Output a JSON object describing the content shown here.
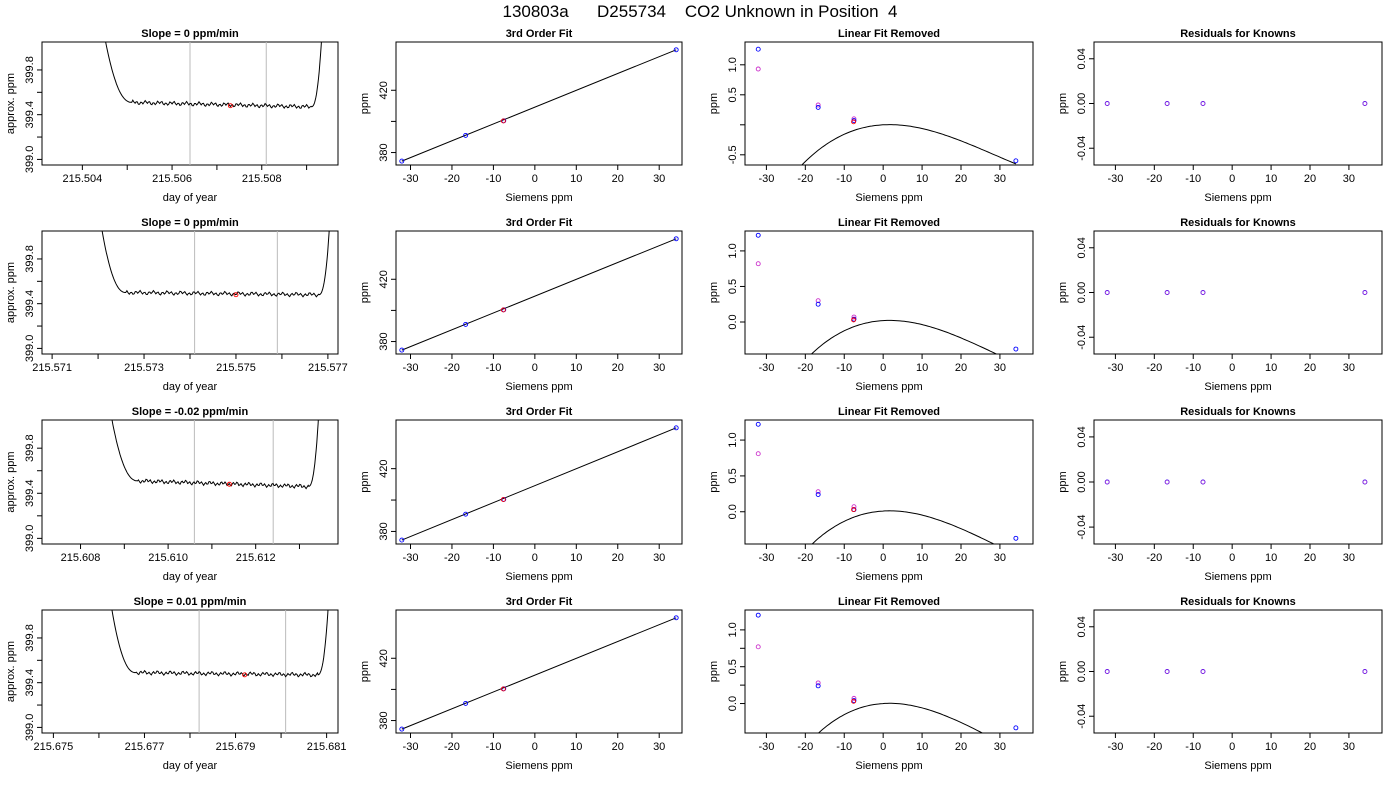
{
  "page": {
    "title": "130803a      D255734    CO2 Unknown in Position  4"
  },
  "colors": {
    "axis": "#000000",
    "line": "#000000",
    "known": "#0000ff",
    "unknown": "#ff0000",
    "alt": "#cc33cc",
    "vline": "#bbbbbb"
  },
  "chart_data": [
    {
      "row": 1,
      "panel": "timeseries",
      "type": "line",
      "title": "Slope =  0  ppm/min",
      "xlabel": "day of year",
      "ylabel": "approx. ppm",
      "xlim": [
        215.5031,
        215.5097
      ],
      "ylim": [
        398.95,
        400.05
      ],
      "xticks": [
        215.504,
        215.505,
        215.506,
        215.507,
        215.508,
        215.509
      ],
      "xticklabels": [
        "215.504",
        "",
        "215.506",
        "",
        "215.508",
        ""
      ],
      "yticks": [
        399.0,
        399.2,
        399.4,
        399.6,
        399.8
      ],
      "yticklabels": [
        "399.0",
        "",
        "399.4",
        "",
        "399.8"
      ],
      "vlines": [
        215.5064,
        215.5081
      ],
      "marker": {
        "x": 215.5073,
        "y": 399.48
      },
      "trace": {
        "x_start": 215.5043,
        "x_rise_end": 215.5051,
        "x_fall_start": 215.5091,
        "x_end": 215.5094,
        "level_start": 399.51,
        "level_end": 399.47
      }
    },
    {
      "row": 1,
      "panel": "fit",
      "type": "scatter",
      "title": "3rd Order Fit",
      "xlabel": "Siemens ppm",
      "ylabel": "ppm",
      "xlim": [
        -33.5,
        35.5
      ],
      "ylim": [
        372,
        451
      ],
      "xticks": [
        -30,
        -20,
        -10,
        0,
        10,
        20,
        30
      ],
      "yticks": [
        380,
        400,
        420
      ],
      "yticklabels": [
        "380",
        "",
        "420"
      ],
      "line": {
        "x": [
          -32.1,
          34.1
        ],
        "y": [
          374.5,
          446.0
        ]
      },
      "knowns": {
        "x": [
          -32.1,
          -16.7,
          -7.5,
          34.1
        ],
        "y": [
          374.5,
          391.0,
          400.4,
          446.0
        ]
      },
      "unknown": {
        "x": [
          -7.6
        ],
        "y": [
          400.3
        ]
      }
    },
    {
      "row": 1,
      "panel": "linear_removed",
      "type": "line",
      "title": "Linear Fit Removed",
      "xlabel": "Siemens ppm",
      "ylabel": "ppm",
      "xlim": [
        -35.5,
        38.5
      ],
      "ylim": [
        -0.67,
        1.38
      ],
      "xticks": [
        -30,
        -20,
        -10,
        0,
        10,
        20,
        30
      ],
      "yticks": [
        -0.5,
        0.0,
        0.5,
        1.0
      ],
      "yticklabels": [
        "-0.5",
        "",
        "0.5",
        "1.0"
      ],
      "curve": {
        "xmin": -32.1,
        "xmax": 34.1,
        "coef": [
          0.0,
          0.0035,
          -0.0011,
          1.28e-05
        ]
      },
      "knowns": {
        "x": [
          -32.1,
          -16.7,
          -7.5,
          34.1
        ],
        "y": [
          1.26,
          0.29,
          0.07,
          -0.6
        ]
      },
      "alt": {
        "x": [
          -32.1,
          -16.7,
          -7.5
        ],
        "y": [
          0.93,
          0.33,
          0.1
        ]
      },
      "unknown": {
        "x": [
          -7.6
        ],
        "y": [
          0.05
        ]
      }
    },
    {
      "row": 1,
      "panel": "residuals",
      "type": "scatter",
      "title": "Residuals for Knowns",
      "xlabel": "Siemens ppm",
      "ylabel": "ppm",
      "xlim": [
        -35.5,
        38.5
      ],
      "ylim": [
        -0.055,
        0.055
      ],
      "xticks": [
        -30,
        -20,
        -10,
        0,
        10,
        20,
        30
      ],
      "yticks": [
        -0.04,
        0.0,
        0.04
      ],
      "yticklabels": [
        "-0.04",
        "0.00",
        "0.04"
      ],
      "knowns": {
        "x": [
          -32.1,
          -16.7,
          -7.5,
          34.1
        ],
        "y": [
          0,
          0,
          0,
          0
        ]
      }
    },
    {
      "row": 2,
      "panel": "timeseries",
      "type": "line",
      "title": "Slope =  0  ppm/min",
      "xlabel": "day of year",
      "ylabel": "approx. ppm",
      "xlim": [
        215.57078,
        215.57722
      ],
      "ylim": [
        398.95,
        400.05
      ],
      "xticks": [
        215.571,
        215.572,
        215.573,
        215.574,
        215.575,
        215.576,
        215.577
      ],
      "xticklabels": [
        "215.571",
        "",
        "215.573",
        "",
        "215.575",
        "",
        "215.577"
      ],
      "yticks": [
        399.0,
        399.2,
        399.4,
        399.6,
        399.8
      ],
      "yticklabels": [
        "399.0",
        "",
        "399.4",
        "",
        "399.8"
      ],
      "vlines": [
        215.5741,
        215.5759
      ],
      "marker": {
        "x": 215.575,
        "y": 399.48
      },
      "trace": {
        "x_start": 215.5719,
        "x_rise_end": 215.5726,
        "x_fall_start": 215.5768,
        "x_end": 215.5771,
        "level_start": 399.5,
        "level_end": 399.48
      }
    },
    {
      "row": 2,
      "panel": "fit",
      "type": "scatter",
      "title": "3rd Order Fit",
      "xlabel": "Siemens ppm",
      "ylabel": "ppm",
      "xlim": [
        -33.5,
        35.5
      ],
      "ylim": [
        372,
        451
      ],
      "xticks": [
        -30,
        -20,
        -10,
        0,
        10,
        20,
        30
      ],
      "yticks": [
        380,
        400,
        420
      ],
      "yticklabels": [
        "380",
        "",
        "420"
      ],
      "line": {
        "x": [
          -32.1,
          34.1
        ],
        "y": [
          374.5,
          446.0
        ]
      },
      "knowns": {
        "x": [
          -32.1,
          -16.7,
          -7.5,
          34.1
        ],
        "y": [
          374.5,
          391.0,
          400.4,
          446.0
        ]
      },
      "unknown": {
        "x": [
          -7.6
        ],
        "y": [
          400.3
        ]
      }
    },
    {
      "row": 2,
      "panel": "linear_removed",
      "type": "line",
      "title": "Linear Fit Removed",
      "xlabel": "Siemens ppm",
      "ylabel": "ppm",
      "xlim": [
        -35.5,
        38.5
      ],
      "ylim": [
        -0.45,
        1.28
      ],
      "xticks": [
        -30,
        -20,
        -10,
        0,
        10,
        20,
        30
      ],
      "yticks": [
        0.0,
        0.5,
        1.0
      ],
      "yticklabels": [
        "0.0",
        "0.5",
        "1.0"
      ],
      "curve": {
        "xmin": -32.1,
        "xmax": 34.1,
        "coef": [
          0.02,
          0.0032,
          -0.001,
          1.15e-05
        ]
      },
      "knowns": {
        "x": [
          -32.1,
          -16.7,
          -7.5,
          34.1
        ],
        "y": [
          1.22,
          0.25,
          0.04,
          -0.38
        ]
      },
      "alt": {
        "x": [
          -32.1,
          -16.7,
          -7.5
        ],
        "y": [
          0.82,
          0.3,
          0.07
        ]
      },
      "unknown": {
        "x": [
          -7.6
        ],
        "y": [
          0.03
        ]
      }
    },
    {
      "row": 2,
      "panel": "residuals",
      "type": "scatter",
      "title": "Residuals for Knowns",
      "xlabel": "Siemens ppm",
      "ylabel": "ppm",
      "xlim": [
        -35.5,
        38.5
      ],
      "ylim": [
        -0.055,
        0.055
      ],
      "xticks": [
        -30,
        -20,
        -10,
        0,
        10,
        20,
        30
      ],
      "yticks": [
        -0.04,
        0.0,
        0.04
      ],
      "yticklabels": [
        "-0.04",
        "0.00",
        "0.04"
      ],
      "knowns": {
        "x": [
          -32.1,
          -16.7,
          -7.5,
          34.1
        ],
        "y": [
          0,
          0,
          0,
          0
        ]
      }
    },
    {
      "row": 3,
      "panel": "timeseries",
      "type": "line",
      "title": "Slope =  -0.02  ppm/min",
      "xlabel": "day of year",
      "ylabel": "approx. ppm",
      "xlim": [
        215.60712,
        215.61388
      ],
      "ylim": [
        398.95,
        400.05
      ],
      "xticks": [
        215.608,
        215.609,
        215.61,
        215.611,
        215.612,
        215.613
      ],
      "xticklabels": [
        "215.608",
        "",
        "215.610",
        "",
        "215.612",
        ""
      ],
      "yticks": [
        399.0,
        399.2,
        399.4,
        399.6,
        399.8
      ],
      "yticklabels": [
        "399.0",
        "",
        "399.4",
        "",
        "399.8"
      ],
      "vlines": [
        215.6106,
        215.6124
      ],
      "marker": {
        "x": 215.6114,
        "y": 399.48
      },
      "trace": {
        "x_start": 215.6085,
        "x_rise_end": 215.6093,
        "x_fall_start": 215.6132,
        "x_end": 215.6135,
        "level_start": 399.51,
        "level_end": 399.46
      }
    },
    {
      "row": 3,
      "panel": "fit",
      "type": "scatter",
      "title": "3rd Order Fit",
      "xlabel": "Siemens ppm",
      "ylabel": "ppm",
      "xlim": [
        -33.5,
        35.5
      ],
      "ylim": [
        372,
        451
      ],
      "xticks": [
        -30,
        -20,
        -10,
        0,
        10,
        20,
        30
      ],
      "yticks": [
        380,
        400,
        420
      ],
      "yticklabels": [
        "380",
        "",
        "420"
      ],
      "line": {
        "x": [
          -32.1,
          34.1
        ],
        "y": [
          374.5,
          446.0
        ]
      },
      "knowns": {
        "x": [
          -32.1,
          -16.7,
          -7.5,
          34.1
        ],
        "y": [
          374.5,
          391.0,
          400.4,
          446.0
        ]
      },
      "unknown": {
        "x": [
          -7.6
        ],
        "y": [
          400.3
        ]
      }
    },
    {
      "row": 3,
      "panel": "linear_removed",
      "type": "line",
      "title": "Linear Fit Removed",
      "xlabel": "Siemens ppm",
      "ylabel": "ppm",
      "xlim": [
        -35.5,
        38.5
      ],
      "ylim": [
        -0.45,
        1.28
      ],
      "xticks": [
        -30,
        -20,
        -10,
        0,
        10,
        20,
        30
      ],
      "yticks": [
        0.0,
        0.5,
        1.0
      ],
      "yticklabels": [
        "0.0",
        "0.5",
        "1.0"
      ],
      "curve": {
        "xmin": -32.1,
        "xmax": 34.1,
        "coef": [
          0.01,
          0.0032,
          -0.001,
          1.12e-05
        ]
      },
      "knowns": {
        "x": [
          -32.1,
          -16.7,
          -7.5,
          34.1
        ],
        "y": [
          1.22,
          0.24,
          0.03,
          -0.37
        ]
      },
      "alt": {
        "x": [
          -32.1,
          -16.7,
          -7.5
        ],
        "y": [
          0.81,
          0.28,
          0.07
        ]
      },
      "unknown": {
        "x": [
          -7.6
        ],
        "y": [
          0.03
        ]
      }
    },
    {
      "row": 3,
      "panel": "residuals",
      "type": "scatter",
      "title": "Residuals for Knowns",
      "xlabel": "Siemens ppm",
      "ylabel": "ppm",
      "xlim": [
        -35.5,
        38.5
      ],
      "ylim": [
        -0.055,
        0.055
      ],
      "xticks": [
        -30,
        -20,
        -10,
        0,
        10,
        20,
        30
      ],
      "yticks": [
        -0.04,
        0.0,
        0.04
      ],
      "yticklabels": [
        "-0.04",
        "0.00",
        "0.04"
      ],
      "knowns": {
        "x": [
          -32.1,
          -16.7,
          -7.5,
          34.1
        ],
        "y": [
          0,
          0,
          0,
          0
        ]
      }
    },
    {
      "row": 4,
      "panel": "timeseries",
      "type": "line",
      "title": "Slope =  0.01  ppm/min",
      "xlabel": "day of year",
      "ylabel": "approx. ppm",
      "xlim": [
        215.67475,
        215.68125
      ],
      "ylim": [
        398.95,
        400.05
      ],
      "xticks": [
        215.675,
        215.676,
        215.677,
        215.678,
        215.679,
        215.68,
        215.681
      ],
      "xticklabels": [
        "215.675",
        "",
        "215.677",
        "",
        "215.679",
        "",
        "215.681"
      ],
      "yticks": [
        399.0,
        399.2,
        399.4,
        399.6,
        399.8
      ],
      "yticklabels": [
        "399.0",
        "",
        "399.4",
        "",
        "399.8"
      ],
      "vlines": [
        215.6782,
        215.6801
      ],
      "marker": {
        "x": 215.6792,
        "y": 399.47
      },
      "trace": {
        "x_start": 215.6761,
        "x_rise_end": 215.6768,
        "x_fall_start": 215.6808,
        "x_end": 215.6811,
        "level_start": 399.49,
        "level_end": 399.47
      }
    },
    {
      "row": 4,
      "panel": "fit",
      "type": "scatter",
      "title": "3rd Order Fit",
      "xlabel": "Siemens ppm",
      "ylabel": "ppm",
      "xlim": [
        -33.5,
        35.5
      ],
      "ylim": [
        372,
        451
      ],
      "xticks": [
        -30,
        -20,
        -10,
        0,
        10,
        20,
        30
      ],
      "yticks": [
        380,
        400,
        420
      ],
      "yticklabels": [
        "380",
        "",
        "420"
      ],
      "line": {
        "x": [
          -32.1,
          34.1
        ],
        "y": [
          374.5,
          446.0
        ]
      },
      "knowns": {
        "x": [
          -32.1,
          -16.7,
          -7.5,
          34.1
        ],
        "y": [
          374.5,
          391.0,
          400.4,
          446.0
        ]
      },
      "unknown": {
        "x": [
          -7.6
        ],
        "y": [
          400.3
        ]
      }
    },
    {
      "row": 4,
      "panel": "linear_removed",
      "type": "line",
      "title": "Linear Fit Removed",
      "xlabel": "Siemens ppm",
      "ylabel": "ppm",
      "xlim": [
        -35.5,
        38.5
      ],
      "ylim": [
        -0.4,
        1.27
      ],
      "xticks": [
        -30,
        -20,
        -10,
        0,
        10,
        20,
        30
      ],
      "yticks": [
        0.0,
        0.25,
        0.5,
        0.75,
        1.0
      ],
      "yticklabels": [
        "0.0",
        "",
        "0.5",
        "",
        "1.0"
      ],
      "curve": {
        "xmin": -32.1,
        "xmax": 34.1,
        "coef": [
          0.0,
          0.0034,
          -0.00105,
          1.18e-05
        ]
      },
      "knowns": {
        "x": [
          -32.1,
          -16.7,
          -7.5,
          34.1
        ],
        "y": [
          1.2,
          0.24,
          0.04,
          -0.33
        ]
      },
      "alt": {
        "x": [
          -32.1,
          -16.7,
          -7.5
        ],
        "y": [
          0.77,
          0.28,
          0.07
        ]
      },
      "unknown": {
        "x": [
          -7.6
        ],
        "y": [
          0.03
        ]
      }
    },
    {
      "row": 4,
      "panel": "residuals",
      "type": "scatter",
      "title": "Residuals for Knowns",
      "xlabel": "Siemens ppm",
      "ylabel": "ppm",
      "xlim": [
        -35.5,
        38.5
      ],
      "ylim": [
        -0.055,
        0.055
      ],
      "xticks": [
        -30,
        -20,
        -10,
        0,
        10,
        20,
        30
      ],
      "yticks": [
        -0.04,
        0.0,
        0.04
      ],
      "yticklabels": [
        "-0.04",
        "0.00",
        "0.04"
      ],
      "knowns": {
        "x": [
          -32.1,
          -16.7,
          -7.5,
          34.1
        ],
        "y": [
          0,
          0,
          0,
          0
        ]
      }
    }
  ]
}
